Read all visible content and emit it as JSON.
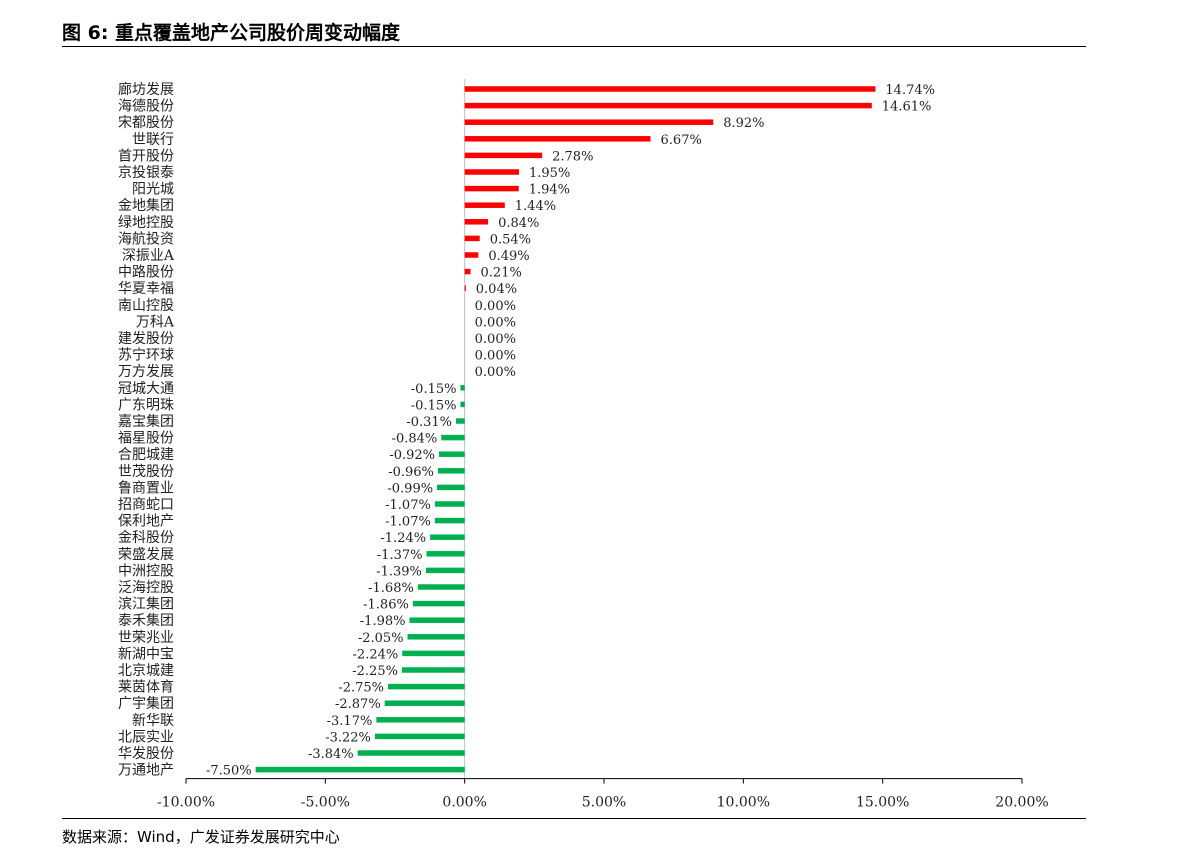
{
  "header": {
    "title": "图 6:  重点覆盖地产公司股价周变动幅度"
  },
  "footer": {
    "source": "数据来源：Wind，广发证券发展研究中心"
  },
  "chart_data": {
    "type": "bar",
    "orientation": "horizontal",
    "title": "图 6:  重点覆盖地产公司股价周变动幅度",
    "xlabel": "",
    "ylabel": "",
    "xlim": [
      -10,
      20
    ],
    "x_ticks": [
      "-10.00%",
      "-5.00%",
      "0.00%",
      "5.00%",
      "10.00%",
      "15.00%",
      "20.00%"
    ],
    "x_tick_values": [
      -10,
      -5,
      0,
      5,
      10,
      15,
      20
    ],
    "grid": false,
    "colors": {
      "positive": "#ff0000",
      "negative": "#00b050"
    },
    "categories": [
      "廊坊发展",
      "海德股份",
      "宋都股份",
      "世联行",
      "首开股份",
      "京投银泰",
      "阳光城",
      "金地集团",
      "绿地控股",
      "海航投资",
      "深振业A",
      "中路股份",
      "华夏幸福",
      "南山控股",
      "万科A",
      "建发股份",
      "苏宁环球",
      "万方发展",
      "冠城大通",
      "广东明珠",
      "嘉宝集团",
      "福星股份",
      "合肥城建",
      "世茂股份",
      "鲁商置业",
      "招商蛇口",
      "保利地产",
      "金科股份",
      "荣盛发展",
      "中洲控股",
      "泛海控股",
      "滨江集团",
      "泰禾集团",
      "世荣兆业",
      "新湖中宝",
      "北京城建",
      "莱茵体育",
      "广宇集团",
      "新华联",
      "北辰实业",
      "华发股份",
      "万通地产"
    ],
    "values": [
      14.74,
      14.61,
      8.92,
      6.67,
      2.78,
      1.95,
      1.94,
      1.44,
      0.84,
      0.54,
      0.49,
      0.21,
      0.04,
      0.0,
      0.0,
      0.0,
      0.0,
      0.0,
      -0.15,
      -0.15,
      -0.31,
      -0.84,
      -0.92,
      -0.96,
      -0.99,
      -1.07,
      -1.07,
      -1.24,
      -1.37,
      -1.39,
      -1.68,
      -1.86,
      -1.98,
      -2.05,
      -2.24,
      -2.25,
      -2.75,
      -2.87,
      -3.17,
      -3.22,
      -3.84,
      -7.5
    ],
    "labels": [
      "14.74%",
      "14.61%",
      "8.92%",
      "6.67%",
      "2.78%",
      "1.95%",
      "1.94%",
      "1.44%",
      "0.84%",
      "0.54%",
      "0.49%",
      "0.21%",
      "0.04%",
      "0.00%",
      "0.00%",
      "0.00%",
      "0.00%",
      "0.00%",
      "-0.15%",
      "-0.15%",
      "-0.31%",
      "-0.84%",
      "-0.92%",
      "-0.96%",
      "-0.99%",
      "-1.07%",
      "-1.07%",
      "-1.24%",
      "-1.37%",
      "-1.39%",
      "-1.68%",
      "-1.86%",
      "-1.98%",
      "-2.05%",
      "-2.24%",
      "-2.25%",
      "-2.75%",
      "-2.87%",
      "-3.17%",
      "-3.22%",
      "-3.84%",
      "-7.50%"
    ]
  }
}
